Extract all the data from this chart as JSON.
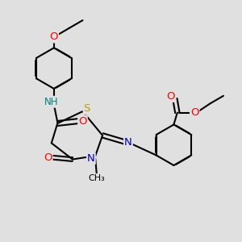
{
  "bg_color": "#e0e0e0",
  "bond_color": "#000000",
  "bond_width": 1.5,
  "atom_colors": {
    "O": "#ff0000",
    "N": "#0000cc",
    "S": "#b8a000",
    "NH": "#008080",
    "C": "#000000"
  },
  "font_size": 8.5
}
